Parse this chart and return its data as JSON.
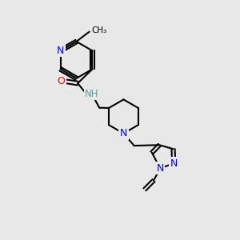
{
  "background_color": "#e8e8e8",
  "bond_color": "#000000",
  "atom_colors": {
    "N": "#0000ff",
    "O": "#ff0000",
    "H": "#5f9ea0",
    "C": "#000000"
  },
  "bond_width": 1.5,
  "font_size": 9,
  "figsize": [
    3.0,
    3.0
  ],
  "dpi": 100,
  "xlim": [
    0,
    10
  ],
  "ylim": [
    0,
    10
  ]
}
